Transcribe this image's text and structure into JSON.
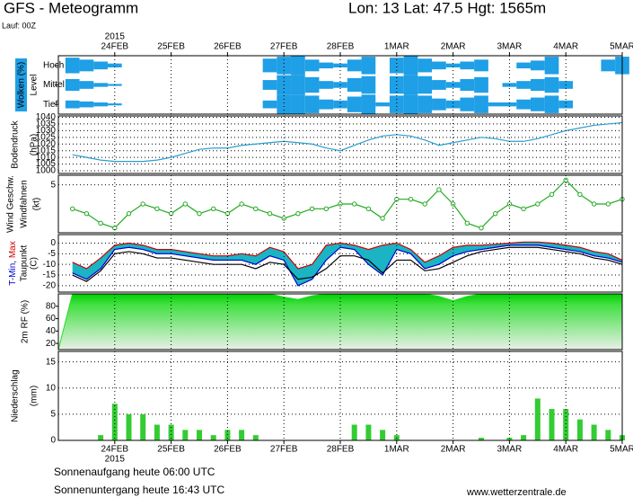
{
  "header": {
    "title": "GFS - Meteogramm",
    "location": "Lon: 13 Lat: 47.5 Hgt: 1565m",
    "run": "Lauf: 00Z"
  },
  "time": {
    "year": "2015",
    "x": [
      -0.75,
      -0.5,
      -0.25,
      0,
      0.25,
      0.5,
      0.75,
      1,
      1.25,
      1.5,
      1.75,
      2,
      2.25,
      2.5,
      2.75,
      3,
      3.25,
      3.5,
      3.75,
      4,
      4.25,
      4.5,
      4.75,
      5,
      5.25,
      5.5,
      5.75,
      6,
      6.25,
      6.5,
      6.75,
      7,
      7.25,
      7.5,
      7.75,
      8,
      8.25,
      8.5,
      8.75,
      9
    ],
    "xlim": [
      -1,
      9
    ],
    "xticks": [
      {
        "value": 0,
        "label": "24FEB"
      },
      {
        "value": 1,
        "label": "25FEB"
      },
      {
        "value": 2,
        "label": "26FEB"
      },
      {
        "value": 3,
        "label": "27FEB"
      },
      {
        "value": 4,
        "label": "28FEB"
      },
      {
        "value": 5,
        "label": "1MAR"
      },
      {
        "value": 6,
        "label": "2MAR"
      },
      {
        "value": 7,
        "label": "3MAR"
      },
      {
        "value": 8,
        "label": "4MAR"
      },
      {
        "value": 9,
        "label": "5MAR"
      }
    ]
  },
  "chart_data": [
    {
      "type": "cloud",
      "ylabel": "Wolken (%)",
      "level_label": "Level",
      "color": "#1e9fe6",
      "ylim": [
        0,
        100
      ],
      "series": [
        {
          "name": "Hoch",
          "values": [
            80,
            60,
            40,
            20,
            0,
            0,
            0,
            0,
            0,
            0,
            0,
            0,
            0,
            0,
            70,
            90,
            100,
            60,
            30,
            20,
            60,
            90,
            0,
            80,
            100,
            70,
            40,
            20,
            40,
            60,
            0,
            0,
            30,
            50,
            90,
            0,
            0,
            0,
            60,
            90
          ]
        },
        {
          "name": "Mittel",
          "values": [
            60,
            40,
            20,
            10,
            0,
            0,
            0,
            0,
            0,
            0,
            0,
            0,
            0,
            0,
            50,
            100,
            100,
            80,
            40,
            30,
            70,
            90,
            0,
            90,
            100,
            90,
            50,
            30,
            60,
            80,
            0,
            20,
            40,
            60,
            80,
            40,
            0,
            0,
            0,
            0
          ]
        },
        {
          "name": "Tief",
          "values": [
            40,
            30,
            20,
            10,
            0,
            0,
            0,
            0,
            0,
            0,
            0,
            0,
            0,
            0,
            40,
            100,
            100,
            90,
            50,
            40,
            80,
            100,
            20,
            90,
            100,
            90,
            60,
            40,
            70,
            90,
            20,
            20,
            50,
            70,
            90,
            40,
            0,
            0,
            0,
            0
          ]
        }
      ]
    },
    {
      "type": "line",
      "ylabel": "Bodendruck",
      "yunit": "(hPa)",
      "ylim": [
        998,
        1041
      ],
      "yticks": [
        1000,
        1005,
        1010,
        1015,
        1020,
        1025,
        1030,
        1035,
        1040
      ],
      "grid": true,
      "color": "#2a9fd0",
      "values": [
        1012,
        1010,
        1008,
        1007,
        1007,
        1007,
        1008,
        1010,
        1013,
        1016,
        1017,
        1017,
        1019,
        1020,
        1021,
        1022,
        1021,
        1020,
        1017,
        1015,
        1019,
        1023,
        1026,
        1027,
        1026,
        1023,
        1019,
        1021,
        1023,
        1025,
        1024,
        1022,
        1022,
        1024,
        1027,
        1030,
        1032,
        1034,
        1035,
        1036
      ]
    },
    {
      "type": "line",
      "ylabel": "Wind Geschw.",
      "ylabel2": "Windfahnen",
      "yunit": "(kt)",
      "ylim": [
        0,
        6
      ],
      "yticks": [
        5
      ],
      "grid": true,
      "color": "#22aa22",
      "markers": true,
      "values": [
        2.5,
        2,
        1,
        0.5,
        2,
        3,
        2.5,
        2,
        3,
        2,
        2.5,
        2,
        3,
        2.5,
        2,
        1.5,
        2,
        2.5,
        2.5,
        3,
        3,
        2.5,
        1.5,
        3.5,
        3.5,
        3,
        4.5,
        3,
        1,
        0.5,
        2,
        3,
        2.5,
        3,
        4,
        5.5,
        4,
        3,
        3,
        3.5
      ]
    },
    {
      "type": "range",
      "yunit": "(C)",
      "ylim": [
        -23,
        4
      ],
      "yticks": [
        0,
        -5,
        -10,
        -15,
        -20
      ],
      "grid": true,
      "fill": "#1ab4c4",
      "series": [
        {
          "name": "T-Min",
          "color": "#0000cc",
          "values": [
            -14,
            -17,
            -12,
            -3,
            -2,
            -3,
            -5,
            -5,
            -6,
            -7,
            -8,
            -8,
            -8,
            -10,
            -6,
            -8,
            -20,
            -17,
            -8,
            -2,
            -3,
            -10,
            -15,
            -3,
            -5,
            -12,
            -10,
            -6,
            -4,
            -3,
            -2,
            -1,
            -1,
            -1,
            -2,
            -3,
            -4,
            -6,
            -7,
            -9
          ]
        },
        {
          "name": "Max",
          "color": "#cc0000",
          "values": [
            -9,
            -12,
            -7,
            -1,
            0,
            -1,
            -3,
            -3,
            -4,
            -5,
            -6,
            -6,
            -5,
            -6,
            -2,
            -4,
            -12,
            -10,
            -1,
            0,
            -1,
            -3,
            -1,
            0,
            -3,
            -9,
            -6,
            -2,
            -1,
            -1,
            -0.5,
            0,
            0.5,
            0.5,
            0,
            -1,
            -2,
            -4,
            -5,
            -8
          ]
        },
        {
          "name": "Taupunkt",
          "color": "#000000",
          "values": [
            -15,
            -18,
            -13,
            -5,
            -4,
            -5,
            -7,
            -7,
            -8,
            -9,
            -10,
            -10,
            -10,
            -12,
            -9,
            -10,
            -17,
            -16,
            -12,
            -6,
            -6,
            -8,
            -14,
            -8,
            -8,
            -13,
            -12,
            -9,
            -6,
            -4,
            -3,
            -2,
            -2,
            -2,
            -3,
            -4,
            -5,
            -7,
            -8,
            -10
          ]
        }
      ]
    },
    {
      "type": "area",
      "ylabel": "2m RF (%)",
      "ylim": [
        10,
        100
      ],
      "yticks": [
        20,
        40,
        60,
        80
      ],
      "grid": false,
      "color": "#22dd22",
      "values": [
        100,
        100,
        100,
        100,
        100,
        100,
        100,
        100,
        100,
        100,
        100,
        100,
        100,
        100,
        100,
        95,
        91,
        97,
        100,
        100,
        100,
        100,
        100,
        100,
        100,
        100,
        96,
        89,
        96,
        100,
        100,
        100,
        100,
        100,
        100,
        100,
        100,
        100,
        100,
        100
      ]
    },
    {
      "type": "bar",
      "ylabel": "Niederschlag",
      "yunit": "(mm)",
      "ylim": [
        0,
        17
      ],
      "yticks": [
        0,
        5,
        10,
        15
      ],
      "grid": true,
      "color": "#33cc33",
      "values": [
        0,
        0,
        1,
        7,
        5,
        5,
        3,
        3,
        2,
        2,
        1,
        2,
        2,
        1,
        0,
        0,
        0,
        0,
        0,
        0,
        3,
        3,
        2,
        1,
        0,
        0,
        0,
        0,
        0,
        0.5,
        0,
        0.5,
        1,
        8,
        6,
        6,
        4,
        3,
        2,
        1
      ]
    }
  ],
  "footer": {
    "sunrise": "Sonnenaufgang heute 06:00 UTC",
    "sunset": "Sonnenuntergang heute 16:43 UTC",
    "site": "www.wetterzentrale.de"
  }
}
